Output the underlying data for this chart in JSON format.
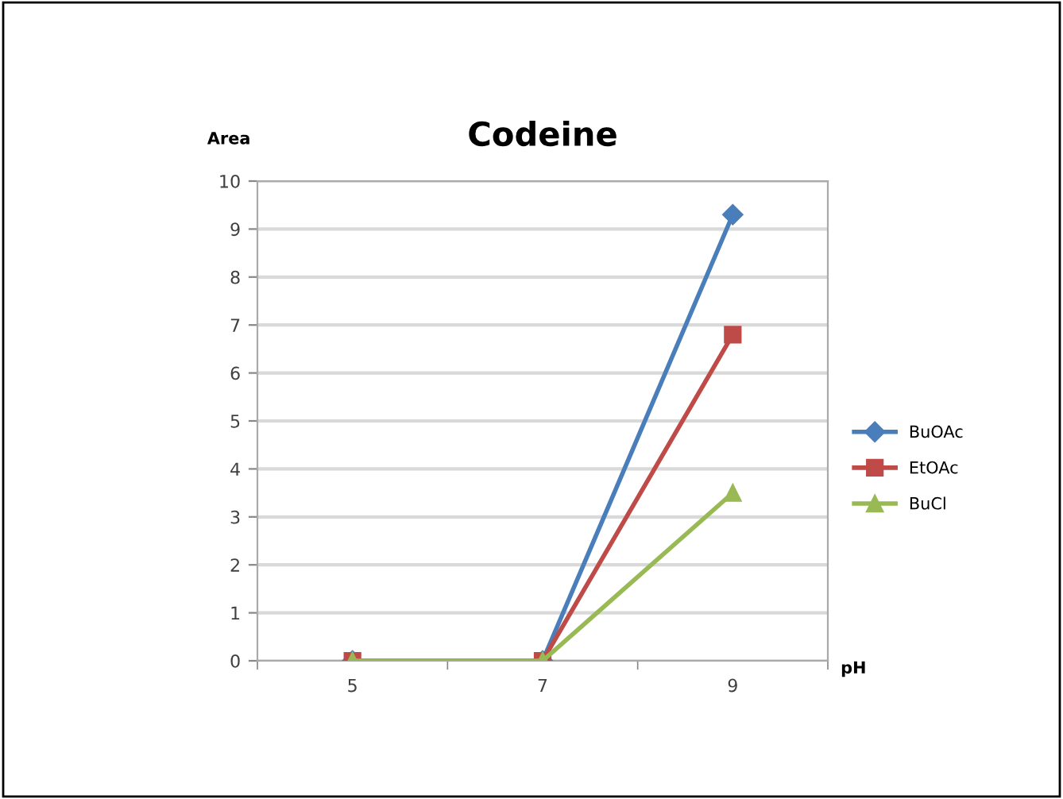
{
  "chart_data": {
    "type": "line",
    "title": "Codeine",
    "xlabel": "pH",
    "ylabel": "Area",
    "categories": [
      "5",
      "7",
      "9"
    ],
    "series": [
      {
        "name": "BuOAc",
        "color": "#4a7ebb",
        "marker": "diamond",
        "values": [
          0,
          0,
          9.3
        ]
      },
      {
        "name": "EtOAc",
        "color": "#be4b48",
        "marker": "square",
        "values": [
          0,
          0,
          6.8
        ]
      },
      {
        "name": "BuCl",
        "color": "#98b954",
        "marker": "triangle",
        "values": [
          0,
          0,
          3.5
        ]
      }
    ],
    "ylim": [
      0,
      10
    ],
    "yticks": [
      0,
      1,
      2,
      3,
      4,
      5,
      6,
      7,
      8,
      9,
      10
    ],
    "grid": "y",
    "legend": "right",
    "line_style": "solid"
  }
}
